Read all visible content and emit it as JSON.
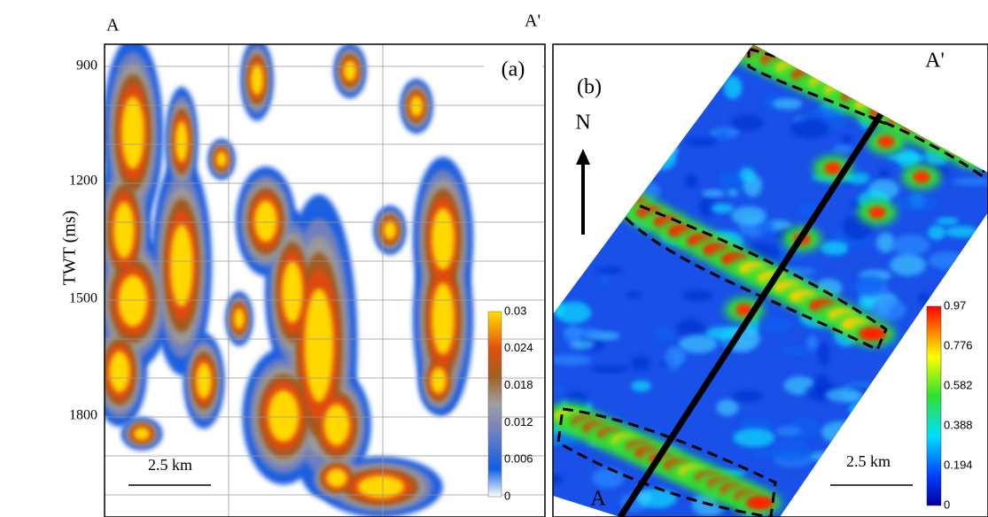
{
  "header": {
    "left_label": "A",
    "right_label": "A'"
  },
  "panel_a": {
    "tag": "(a)",
    "axis_label": "TWT (ms)",
    "yticks": [
      "900",
      "1200",
      "1500",
      "1800"
    ],
    "scale_bar": "2.5 km",
    "colorbar": [
      "0.03",
      "0.024",
      "0.018",
      "0.012",
      "0.006",
      "0"
    ]
  },
  "panel_b": {
    "tag": "(b)",
    "north": "N",
    "start_label": "A",
    "end_label": "A'",
    "scale_bar": "2.5 km",
    "colorbar": [
      "0.97",
      "0.776",
      "0.582",
      "0.388",
      "0.194",
      "0"
    ]
  }
}
